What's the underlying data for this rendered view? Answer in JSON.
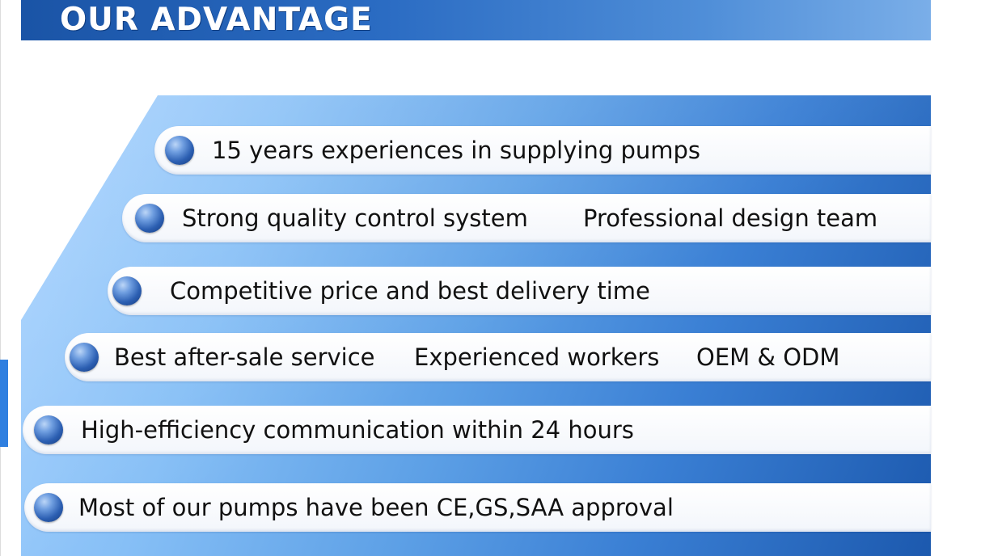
{
  "header": {
    "title": "OUR ADVANTAGE"
  },
  "advantages": {
    "item1": "15 years experiences in supplying pumps",
    "item2a": "Strong quality control system",
    "item2b": "Professional design team",
    "item3": "Competitive price and best delivery time",
    "item4a": "Best after-sale service",
    "item4b": "Experienced workers",
    "item4c": "OEM & ODM",
    "item5": "High-efficiency communication within 24 hours",
    "item6": "Most of our pumps have been CE,GS,SAA approval"
  },
  "colors": {
    "header_dark": "#1a54a6",
    "header_light": "#7aaee8",
    "panel_light": "#a7d2ff",
    "panel_dark": "#1c59ae",
    "bullet": "#2c5fb2",
    "side_tab": "#2f7fe0"
  },
  "icons": {
    "bullet": "blue-sphere-bullet-icon"
  }
}
